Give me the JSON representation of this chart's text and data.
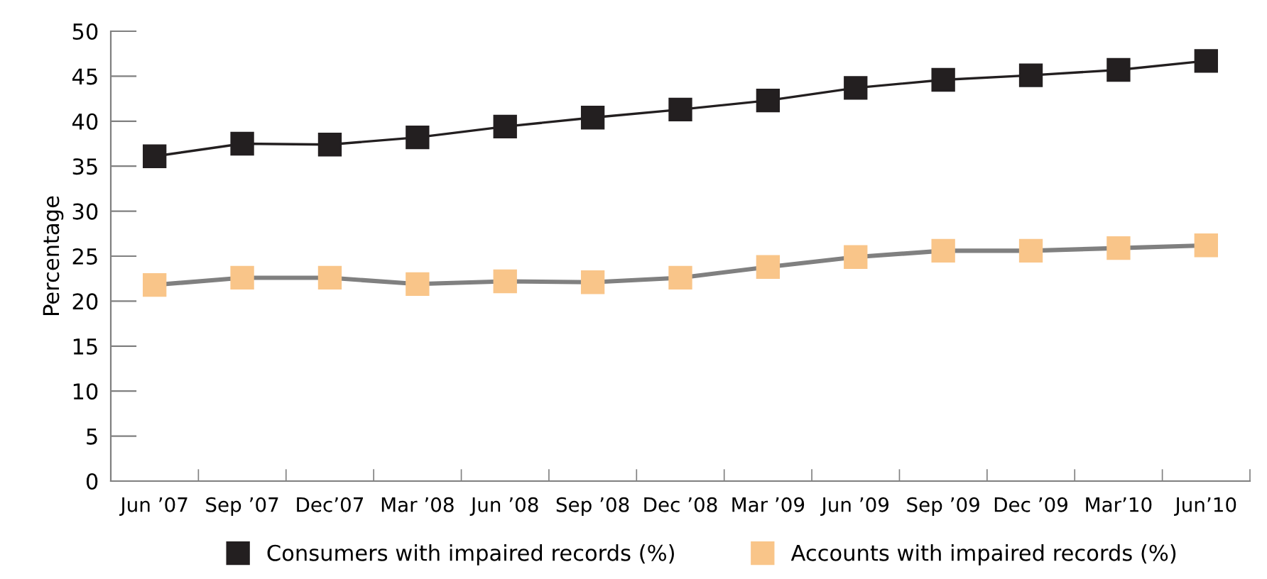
{
  "chart_data": {
    "type": "line",
    "ylabel": "Percentage",
    "categories": [
      "Jun ’07",
      "Sep ’07",
      "Dec’07",
      "Mar ’08",
      "Jun ’08",
      "Sep ’08",
      "Dec ’08",
      "Mar ’09",
      "Jun ’09",
      "Sep ’09",
      "Dec ’09",
      "Mar’10",
      "Jun’10"
    ],
    "series": [
      {
        "name": "Consumers with impaired records (%)",
        "color": "#231f20",
        "values": [
          36.1,
          37.5,
          37.4,
          38.2,
          39.4,
          40.4,
          41.3,
          42.3,
          43.7,
          44.6,
          45.1,
          45.7,
          46.7
        ]
      },
      {
        "name": "Accounts with impaired records (%)",
        "color": "#f9c589",
        "values": [
          21.8,
          22.6,
          22.6,
          21.9,
          22.2,
          22.1,
          22.6,
          23.8,
          24.9,
          25.6,
          25.6,
          25.9,
          26.2
        ]
      }
    ],
    "ylim": [
      0,
      50
    ],
    "yticks": [
      0,
      5,
      10,
      15,
      20,
      25,
      30,
      35,
      40,
      45,
      50
    ],
    "grid": false,
    "legend": "bottom",
    "marker": "square",
    "line_style": "solid"
  }
}
